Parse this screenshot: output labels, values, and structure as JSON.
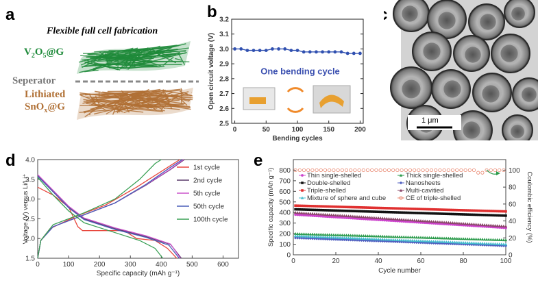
{
  "panels": {
    "a": {
      "label": "a",
      "title": "Flexible full cell fabrication",
      "top_main": "V",
      "top_sub1": "2",
      "top_mid": "O",
      "top_sub2": "5",
      "top_tail": "@G",
      "sep": "Seperator",
      "bot_line1": "Lithiated",
      "bot_main": "SnO",
      "bot_sub": "x",
      "bot_tail": "@G",
      "colors": {
        "green": "#1e8a3a",
        "brown": "#b07035",
        "sep": "#888888"
      }
    },
    "b": {
      "label": "b"
    },
    "c": {
      "label": "c",
      "scale": "1 μm"
    },
    "d": {
      "label": "d"
    },
    "e": {
      "label": "e"
    }
  },
  "chart_data": [
    {
      "panel": "b",
      "type": "line",
      "xlabel": "Bending cycles",
      "ylabel": "Open circuit voltage (V)",
      "xlim": [
        -5,
        205
      ],
      "ylim": [
        2.5,
        3.2
      ],
      "xticks": [
        0,
        50,
        100,
        150,
        200
      ],
      "yticks": [
        2.5,
        2.6,
        2.7,
        2.8,
        2.9,
        3.0,
        3.1,
        3.2
      ],
      "annotation": "One bending cycle",
      "series": [
        {
          "color": "#3050b0",
          "x": [
            0,
            10,
            20,
            30,
            40,
            50,
            60,
            70,
            80,
            90,
            100,
            110,
            120,
            130,
            140,
            150,
            160,
            170,
            180,
            190,
            200
          ],
          "y": [
            3.0,
            3.0,
            2.99,
            2.99,
            2.99,
            2.99,
            3.0,
            3.0,
            3.0,
            2.99,
            2.99,
            2.98,
            2.98,
            2.98,
            2.98,
            2.98,
            2.98,
            2.98,
            2.97,
            2.97,
            2.97
          ]
        }
      ]
    },
    {
      "panel": "d",
      "type": "line",
      "xlabel": "Specific capacity (mAh g⁻¹)",
      "ylabel": "Voltage (V) versus Li/Li⁺",
      "xlim": [
        0,
        650
      ],
      "ylim": [
        1.5,
        4.0
      ],
      "xticks": [
        0,
        100,
        200,
        300,
        400,
        500,
        600
      ],
      "yticks": [
        1.5,
        2.0,
        2.5,
        3.0,
        3.5,
        4.0
      ],
      "legend_position": "right",
      "series": [
        {
          "name": "1st cycle",
          "color": "#e8473d",
          "discharge": [
            [
              0,
              3.3
            ],
            [
              50,
              3.1
            ],
            [
              100,
              2.8
            ],
            [
              130,
              2.3
            ],
            [
              145,
              2.2
            ],
            [
              280,
              2.2
            ],
            [
              320,
              2.0
            ],
            [
              380,
              1.95
            ],
            [
              420,
              1.75
            ],
            [
              450,
              1.5
            ]
          ],
          "charge": [
            [
              0,
              1.5
            ],
            [
              10,
              1.95
            ],
            [
              40,
              2.25
            ],
            [
              120,
              2.55
            ],
            [
              220,
              2.85
            ],
            [
              320,
              3.3
            ],
            [
              400,
              3.7
            ],
            [
              460,
              4.0
            ]
          ]
        },
        {
          "name": "2nd cycle",
          "color": "#5a3a6a",
          "discharge": [
            [
              0,
              3.6
            ],
            [
              50,
              3.2
            ],
            [
              100,
              2.8
            ],
            [
              150,
              2.5
            ],
            [
              250,
              2.25
            ],
            [
              350,
              2.05
            ],
            [
              430,
              1.85
            ],
            [
              465,
              1.5
            ]
          ],
          "charge": [
            [
              0,
              1.5
            ],
            [
              10,
              1.95
            ],
            [
              50,
              2.3
            ],
            [
              150,
              2.6
            ],
            [
              250,
              2.9
            ],
            [
              350,
              3.35
            ],
            [
              430,
              3.75
            ],
            [
              475,
              4.0
            ]
          ]
        },
        {
          "name": "5th cycle",
          "color": "#cc55cc",
          "discharge": [
            [
              0,
              3.62
            ],
            [
              50,
              3.22
            ],
            [
              100,
              2.82
            ],
            [
              150,
              2.52
            ],
            [
              250,
              2.27
            ],
            [
              350,
              2.07
            ],
            [
              430,
              1.86
            ],
            [
              462,
              1.5
            ]
          ],
          "charge": [
            [
              0,
              1.5
            ],
            [
              10,
              1.95
            ],
            [
              50,
              2.3
            ],
            [
              150,
              2.6
            ],
            [
              250,
              2.9
            ],
            [
              350,
              3.36
            ],
            [
              430,
              3.76
            ],
            [
              472,
              4.0
            ]
          ]
        },
        {
          "name": "50th cycle",
          "color": "#4a5fb8",
          "discharge": [
            [
              0,
              3.58
            ],
            [
              50,
              3.18
            ],
            [
              100,
              2.78
            ],
            [
              150,
              2.48
            ],
            [
              250,
              2.23
            ],
            [
              350,
              2.03
            ],
            [
              425,
              1.83
            ],
            [
              458,
              1.5
            ]
          ],
          "charge": [
            [
              0,
              1.5
            ],
            [
              10,
              1.95
            ],
            [
              50,
              2.3
            ],
            [
              150,
              2.6
            ],
            [
              250,
              2.9
            ],
            [
              350,
              3.37
            ],
            [
              425,
              3.78
            ],
            [
              468,
              4.0
            ]
          ]
        },
        {
          "name": "100th cycle",
          "color": "#3aa055",
          "discharge": [
            [
              0,
              3.55
            ],
            [
              50,
              3.1
            ],
            [
              100,
              2.7
            ],
            [
              150,
              2.4
            ],
            [
              250,
              2.15
            ],
            [
              330,
              1.95
            ],
            [
              380,
              1.75
            ],
            [
              405,
              1.5
            ]
          ],
          "charge": [
            [
              0,
              1.5
            ],
            [
              10,
              1.95
            ],
            [
              50,
              2.35
            ],
            [
              150,
              2.65
            ],
            [
              250,
              3.0
            ],
            [
              330,
              3.5
            ],
            [
              380,
              3.9
            ],
            [
              400,
              4.0
            ]
          ]
        }
      ]
    },
    {
      "panel": "e",
      "type": "scatter",
      "xlabel": "Cycle number",
      "ylabel": "Specific capacity (mAh g⁻¹)",
      "y2label": "Coulombic efficiency (%)",
      "xlim": [
        0,
        100
      ],
      "ylim": [
        0,
        900
      ],
      "y2lim": [
        0,
        112.5
      ],
      "xticks": [
        0,
        20,
        40,
        60,
        80,
        100
      ],
      "yticks": [
        0,
        100,
        200,
        300,
        400,
        500,
        600,
        700,
        800
      ],
      "y2ticks": [
        0,
        20,
        40,
        60,
        80,
        100
      ],
      "legend_position": "top",
      "series": [
        {
          "name": "Thin single-shelled",
          "color": "#cc44cc",
          "marker": "circle",
          "start": 380,
          "end": 255
        },
        {
          "name": "Thick single-shelled",
          "color": "#2a9a4a",
          "marker": "triangle",
          "start": 200,
          "end": 140
        },
        {
          "name": "Double-shelled",
          "color": "#111111",
          "marker": "square",
          "start": 430,
          "end": 370
        },
        {
          "name": "Nanosheets",
          "color": "#5060c0",
          "marker": "diamond",
          "start": 160,
          "end": 85
        },
        {
          "name": "Triple-shelled",
          "color": "#e03030",
          "marker": "square",
          "start": 465,
          "end": 410
        },
        {
          "name": "Multi-cavitied",
          "color": "#884466",
          "marker": "triangle",
          "start": 400,
          "end": 270
        },
        {
          "name": "Mixture of sphere and cube",
          "color": "#44bbcc",
          "marker": "triangle",
          "start": 180,
          "end": 100
        },
        {
          "name": "CE of triple-shelled",
          "color": "#e8826a",
          "marker": "open-circle",
          "axis": "right",
          "value": 100
        }
      ]
    }
  ]
}
